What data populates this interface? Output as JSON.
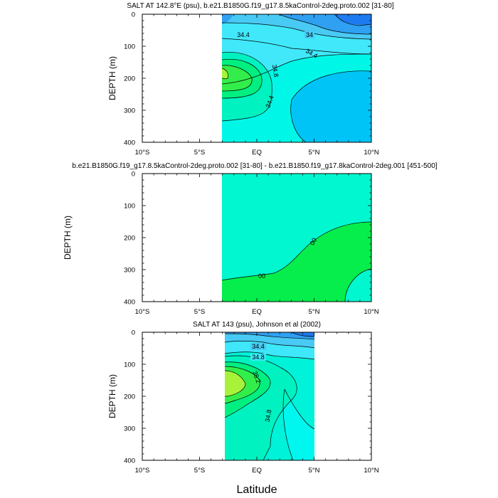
{
  "figure": {
    "xlabel": "Latitude",
    "x_tick_labels": [
      "10°S",
      "5°S",
      "EQ",
      "5°N",
      "10°N"
    ],
    "y_tick_labels": [
      "0",
      "100",
      "200",
      "300",
      "400"
    ]
  },
  "chart_data": [
    {
      "type": "heatmap",
      "title": "SALT AT 142.8°E (psu), b.e21.B1850G.f19_g17.8.5kaControl-2deg.proto.002 [31-80]",
      "xlabel": "",
      "ylabel": "DEPTH (m)",
      "xlim": [
        -10,
        10
      ],
      "ylim": [
        400,
        0
      ],
      "data_extent_lat": [
        -3,
        10
      ],
      "contour_labels": [
        "34.4",
        "34",
        "34.4",
        "34.8",
        "34.4"
      ]
    },
    {
      "type": "heatmap",
      "title": "b.e21.B1850G.f19_g17.8.5kaControl-2deg.proto.002 [31-80] - b.e21.B1850.f19_g17.8kaControl-2deg.001 [451-500]",
      "xlabel": "",
      "ylabel": "DEPTH (m)",
      "xlim": [
        -10,
        10
      ],
      "ylim": [
        400,
        0
      ],
      "data_extent_lat": [
        -3,
        10
      ],
      "contour_labels": [
        "00",
        "00"
      ]
    },
    {
      "type": "heatmap",
      "title": "SALT AT 143 (psu), Johnson et al (2002)",
      "xlabel": "",
      "ylabel": "DEPTH (m)",
      "xlim": [
        -10,
        10
      ],
      "ylim": [
        400,
        0
      ],
      "data_extent_lat": [
        -3,
        5
      ],
      "contour_labels": [
        "34.4",
        "34.8",
        "35.2",
        "34.8"
      ]
    }
  ]
}
